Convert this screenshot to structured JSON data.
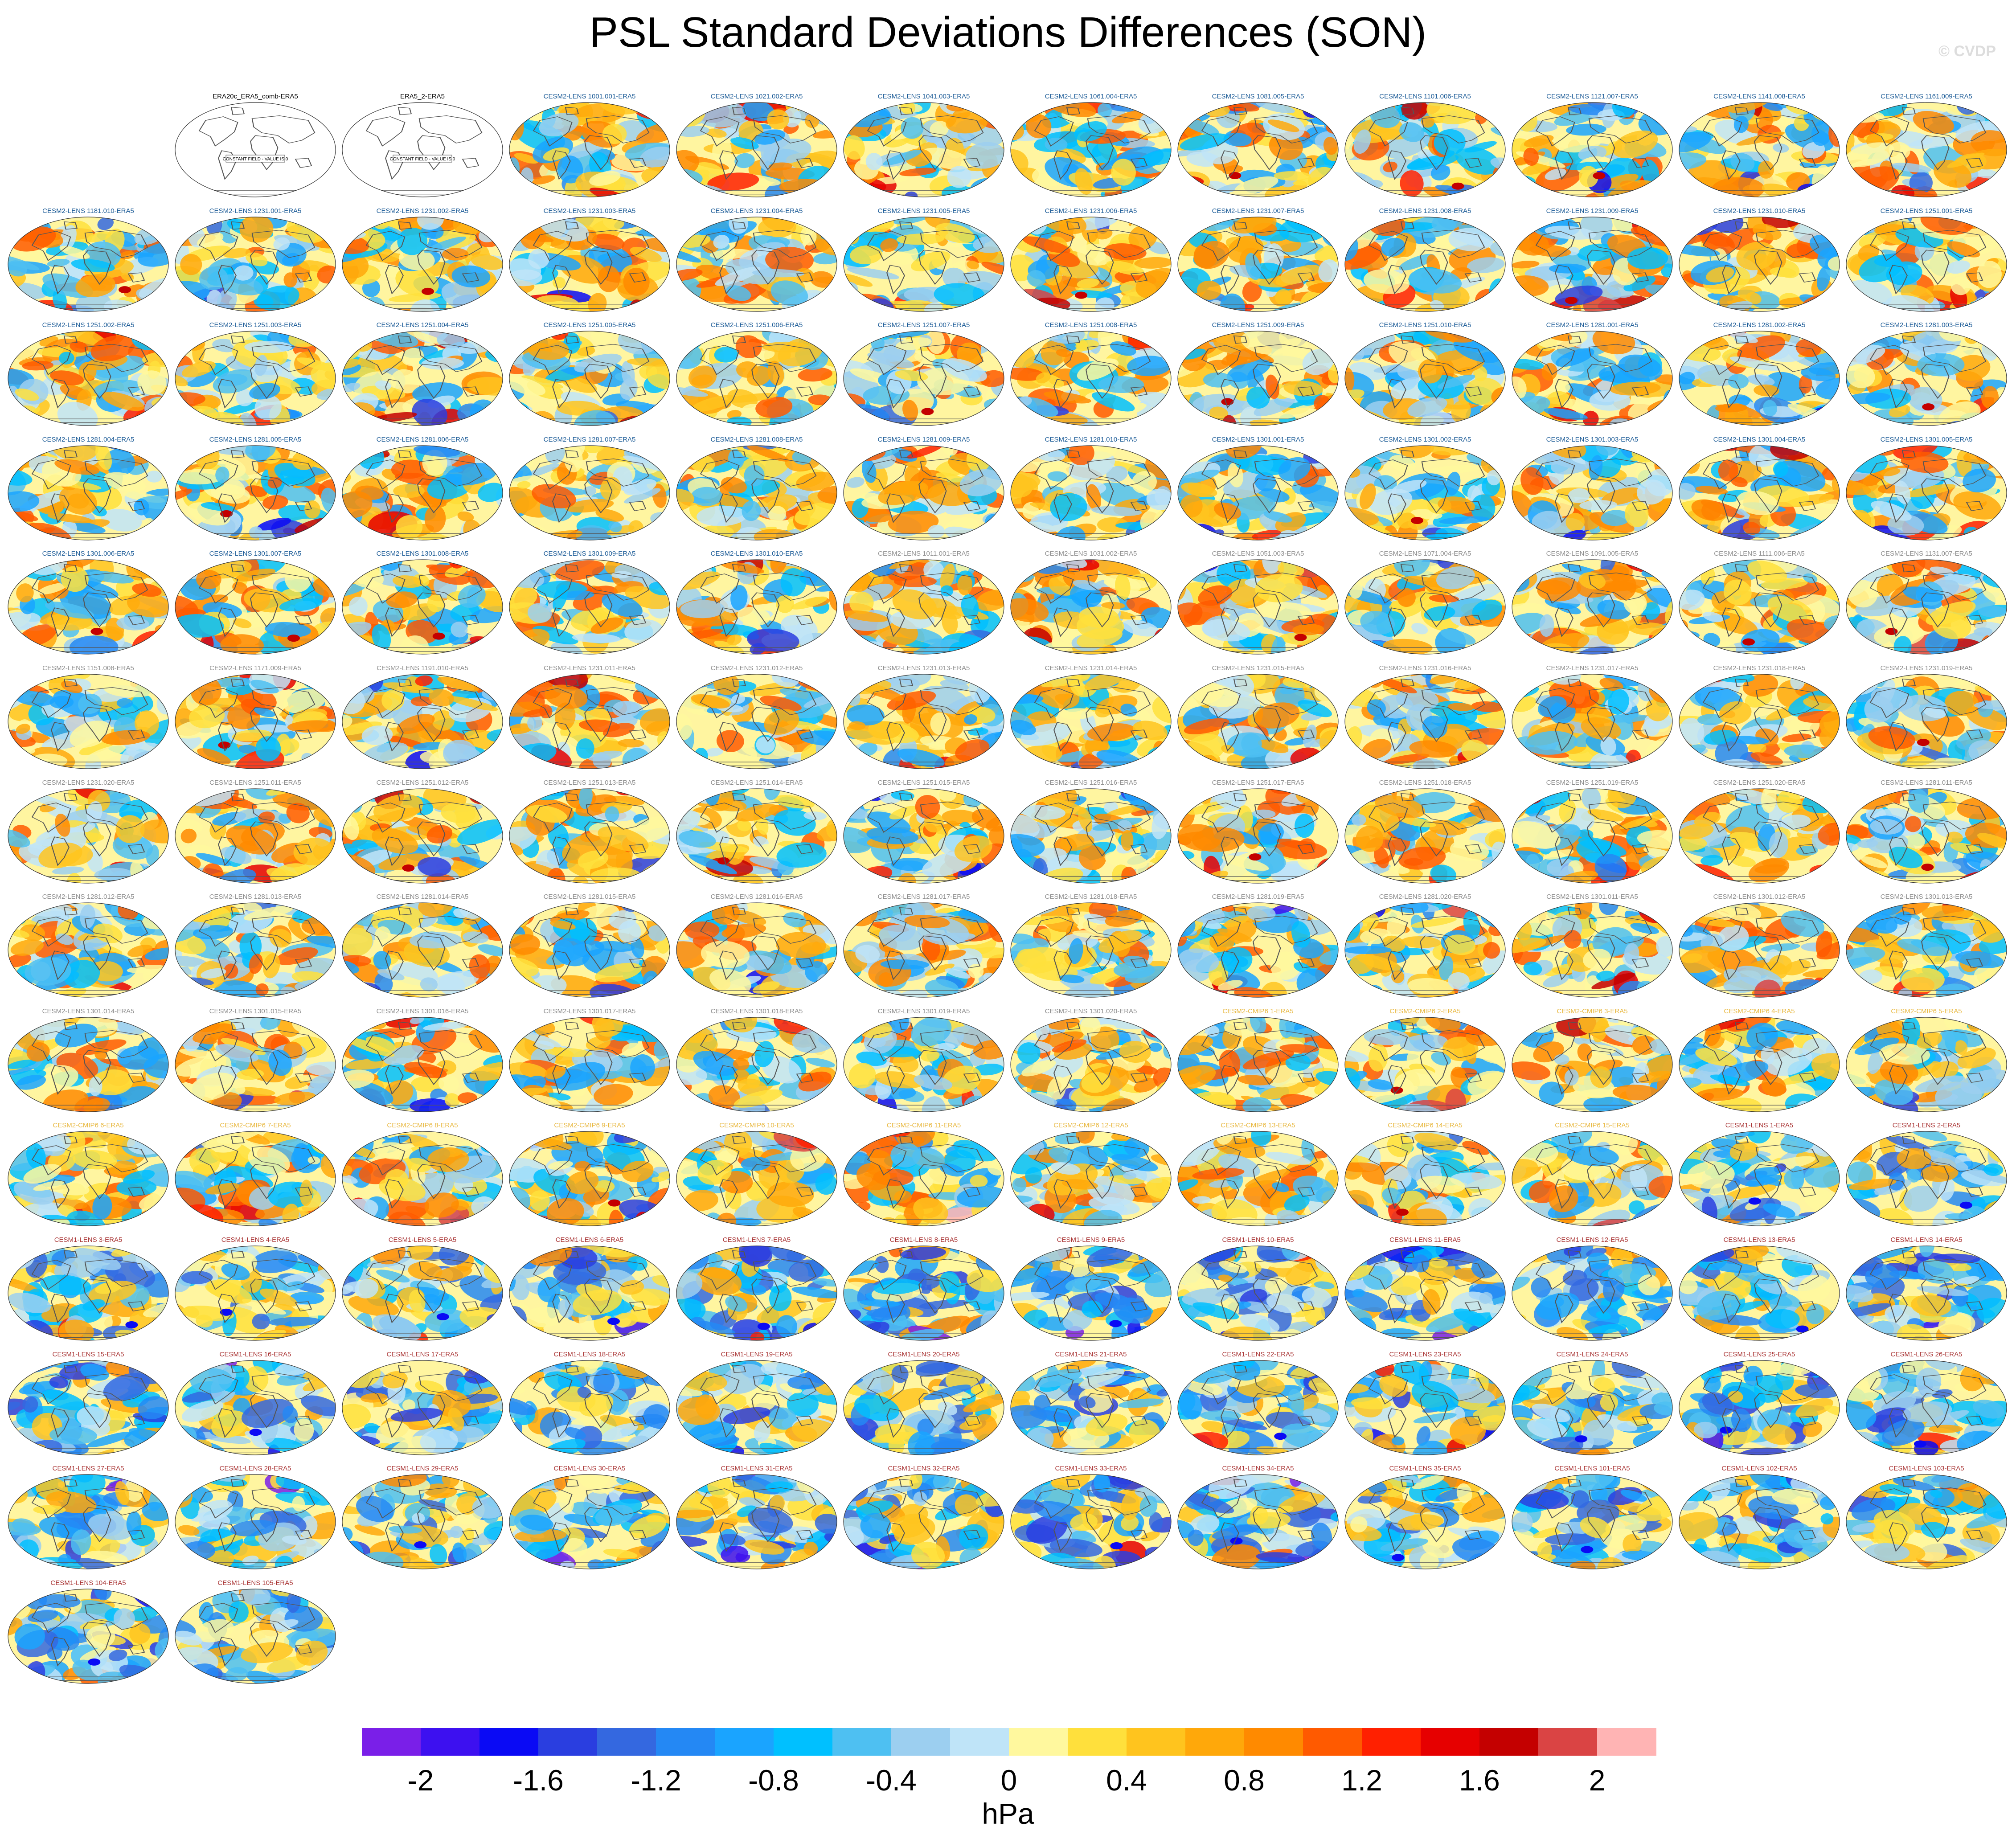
{
  "title": "PSL Standard Deviations Differences (SON)",
  "credit": "© CVDP",
  "colorbar": {
    "units": "hPa",
    "tick_labels": [
      "-2",
      "-1.6",
      "-1.2",
      "-0.8",
      "-0.4",
      "0",
      "0.4",
      "0.8",
      "1.2",
      "1.6",
      "2"
    ],
    "colors": [
      "#7a1fe8",
      "#3d10f0",
      "#0a0af5",
      "#2a3ee0",
      "#3468e0",
      "#2488f4",
      "#1aa4ff",
      "#00c0ff",
      "#4ec0f2",
      "#9ccff0",
      "#bfe4f8",
      "#fff89e",
      "#ffe03c",
      "#ffc41e",
      "#ffa80a",
      "#ff8a00",
      "#ff5a00",
      "#ff2000",
      "#e60000",
      "#c40000",
      "#da4444",
      "#ffb4b4"
    ]
  },
  "label_colors": {
    "era": "#000000",
    "lens2_a": "#1a5a96",
    "lens2_b": "#8c8c8c",
    "cmip6": "#e8b840",
    "lens1": "#a83232"
  },
  "panels": [
    {
      "label": "ERA20c_ERA5_comb-ERA5",
      "group": "era",
      "constant": true,
      "constant_text": "CONSTANT FIELD - VALUE IS 0"
    },
    {
      "label": "ERA5_2-ERA5",
      "group": "era",
      "constant": true,
      "constant_text": "CONSTANT FIELD - VALUE IS 0"
    },
    {
      "label": "CESM2-LENS 1001.001-ERA5",
      "group": "lens2_a"
    },
    {
      "label": "CESM2-LENS 1021.002-ERA5",
      "group": "lens2_a"
    },
    {
      "label": "CESM2-LENS 1041.003-ERA5",
      "group": "lens2_a"
    },
    {
      "label": "CESM2-LENS 1061.004-ERA5",
      "group": "lens2_a"
    },
    {
      "label": "CESM2-LENS 1081.005-ERA5",
      "group": "lens2_a"
    },
    {
      "label": "CESM2-LENS 1101.006-ERA5",
      "group": "lens2_a"
    },
    {
      "label": "CESM2-LENS 1121.007-ERA5",
      "group": "lens2_a"
    },
    {
      "label": "CESM2-LENS 1141.008-ERA5",
      "group": "lens2_a"
    },
    {
      "label": "CESM2-LENS 1161.009-ERA5",
      "group": "lens2_a"
    },
    {
      "label": "CESM2-LENS 1181.010-ERA5",
      "group": "lens2_a"
    },
    {
      "label": "CESM2-LENS 1231.001-ERA5",
      "group": "lens2_a"
    },
    {
      "label": "CESM2-LENS 1231.002-ERA5",
      "group": "lens2_a"
    },
    {
      "label": "CESM2-LENS 1231.003-ERA5",
      "group": "lens2_a"
    },
    {
      "label": "CESM2-LENS 1231.004-ERA5",
      "group": "lens2_a"
    },
    {
      "label": "CESM2-LENS 1231.005-ERA5",
      "group": "lens2_a"
    },
    {
      "label": "CESM2-LENS 1231.006-ERA5",
      "group": "lens2_a"
    },
    {
      "label": "CESM2-LENS 1231.007-ERA5",
      "group": "lens2_a"
    },
    {
      "label": "CESM2-LENS 1231.008-ERA5",
      "group": "lens2_a"
    },
    {
      "label": "CESM2-LENS 1231.009-ERA5",
      "group": "lens2_a"
    },
    {
      "label": "CESM2-LENS 1231.010-ERA5",
      "group": "lens2_a"
    },
    {
      "label": "CESM2-LENS 1251.001-ERA5",
      "group": "lens2_a"
    },
    {
      "label": "CESM2-LENS 1251.002-ERA5",
      "group": "lens2_a"
    },
    {
      "label": "CESM2-LENS 1251.003-ERA5",
      "group": "lens2_a"
    },
    {
      "label": "CESM2-LENS 1251.004-ERA5",
      "group": "lens2_a"
    },
    {
      "label": "CESM2-LENS 1251.005-ERA5",
      "group": "lens2_a"
    },
    {
      "label": "CESM2-LENS 1251.006-ERA5",
      "group": "lens2_a"
    },
    {
      "label": "CESM2-LENS 1251.007-ERA5",
      "group": "lens2_a"
    },
    {
      "label": "CESM2-LENS 1251.008-ERA5",
      "group": "lens2_a"
    },
    {
      "label": "CESM2-LENS 1251.009-ERA5",
      "group": "lens2_a"
    },
    {
      "label": "CESM2-LENS 1251.010-ERA5",
      "group": "lens2_a"
    },
    {
      "label": "CESM2-LENS 1281.001-ERA5",
      "group": "lens2_a"
    },
    {
      "label": "CESM2-LENS 1281.002-ERA5",
      "group": "lens2_a"
    },
    {
      "label": "CESM2-LENS 1281.003-ERA5",
      "group": "lens2_a"
    },
    {
      "label": "CESM2-LENS 1281.004-ERA5",
      "group": "lens2_a"
    },
    {
      "label": "CESM2-LENS 1281.005-ERA5",
      "group": "lens2_a"
    },
    {
      "label": "CESM2-LENS 1281.006-ERA5",
      "group": "lens2_a"
    },
    {
      "label": "CESM2-LENS 1281.007-ERA5",
      "group": "lens2_a"
    },
    {
      "label": "CESM2-LENS 1281.008-ERA5",
      "group": "lens2_a"
    },
    {
      "label": "CESM2-LENS 1281.009-ERA5",
      "group": "lens2_a"
    },
    {
      "label": "CESM2-LENS 1281.010-ERA5",
      "group": "lens2_a"
    },
    {
      "label": "CESM2-LENS 1301.001-ERA5",
      "group": "lens2_a"
    },
    {
      "label": "CESM2-LENS 1301.002-ERA5",
      "group": "lens2_a"
    },
    {
      "label": "CESM2-LENS 1301.003-ERA5",
      "group": "lens2_a"
    },
    {
      "label": "CESM2-LENS 1301.004-ERA5",
      "group": "lens2_a"
    },
    {
      "label": "CESM2-LENS 1301.005-ERA5",
      "group": "lens2_a"
    },
    {
      "label": "CESM2-LENS 1301.006-ERA5",
      "group": "lens2_a"
    },
    {
      "label": "CESM2-LENS 1301.007-ERA5",
      "group": "lens2_a"
    },
    {
      "label": "CESM2-LENS 1301.008-ERA5",
      "group": "lens2_a"
    },
    {
      "label": "CESM2-LENS 1301.009-ERA5",
      "group": "lens2_a"
    },
    {
      "label": "CESM2-LENS 1301.010-ERA5",
      "group": "lens2_a"
    },
    {
      "label": "CESM2-LENS 1011.001-ERA5",
      "group": "lens2_b"
    },
    {
      "label": "CESM2-LENS 1031.002-ERA5",
      "group": "lens2_b"
    },
    {
      "label": "CESM2-LENS 1051.003-ERA5",
      "group": "lens2_b"
    },
    {
      "label": "CESM2-LENS 1071.004-ERA5",
      "group": "lens2_b"
    },
    {
      "label": "CESM2-LENS 1091.005-ERA5",
      "group": "lens2_b"
    },
    {
      "label": "CESM2-LENS 1111.006-ERA5",
      "group": "lens2_b"
    },
    {
      "label": "CESM2-LENS 1131.007-ERA5",
      "group": "lens2_b"
    },
    {
      "label": "CESM2-LENS 1151.008-ERA5",
      "group": "lens2_b"
    },
    {
      "label": "CESM2-LENS 1171.009-ERA5",
      "group": "lens2_b"
    },
    {
      "label": "CESM2-LENS 1191.010-ERA5",
      "group": "lens2_b"
    },
    {
      "label": "CESM2-LENS 1231.011-ERA5",
      "group": "lens2_b"
    },
    {
      "label": "CESM2-LENS 1231.012-ERA5",
      "group": "lens2_b"
    },
    {
      "label": "CESM2-LENS 1231.013-ERA5",
      "group": "lens2_b"
    },
    {
      "label": "CESM2-LENS 1231.014-ERA5",
      "group": "lens2_b"
    },
    {
      "label": "CESM2-LENS 1231.015-ERA5",
      "group": "lens2_b"
    },
    {
      "label": "CESM2-LENS 1231.016-ERA5",
      "group": "lens2_b"
    },
    {
      "label": "CESM2-LENS 1231.017-ERA5",
      "group": "lens2_b"
    },
    {
      "label": "CESM2-LENS 1231.018-ERA5",
      "group": "lens2_b"
    },
    {
      "label": "CESM2-LENS 1231.019-ERA5",
      "group": "lens2_b"
    },
    {
      "label": "CESM2-LENS 1231.020-ERA5",
      "group": "lens2_b"
    },
    {
      "label": "CESM2-LENS 1251.011-ERA5",
      "group": "lens2_b"
    },
    {
      "label": "CESM2-LENS 1251.012-ERA5",
      "group": "lens2_b"
    },
    {
      "label": "CESM2-LENS 1251.013-ERA5",
      "group": "lens2_b"
    },
    {
      "label": "CESM2-LENS 1251.014-ERA5",
      "group": "lens2_b"
    },
    {
      "label": "CESM2-LENS 1251.015-ERA5",
      "group": "lens2_b"
    },
    {
      "label": "CESM2-LENS 1251.016-ERA5",
      "group": "lens2_b"
    },
    {
      "label": "CESM2-LENS 1251.017-ERA5",
      "group": "lens2_b"
    },
    {
      "label": "CESM2-LENS 1251.018-ERA5",
      "group": "lens2_b"
    },
    {
      "label": "CESM2-LENS 1251.019-ERA5",
      "group": "lens2_b"
    },
    {
      "label": "CESM2-LENS 1251.020-ERA5",
      "group": "lens2_b"
    },
    {
      "label": "CESM2-LENS 1281.011-ERA5",
      "group": "lens2_b"
    },
    {
      "label": "CESM2-LENS 1281.012-ERA5",
      "group": "lens2_b"
    },
    {
      "label": "CESM2-LENS 1281.013-ERA5",
      "group": "lens2_b"
    },
    {
      "label": "CESM2-LENS 1281.014-ERA5",
      "group": "lens2_b"
    },
    {
      "label": "CESM2-LENS 1281.015-ERA5",
      "group": "lens2_b"
    },
    {
      "label": "CESM2-LENS 1281.016-ERA5",
      "group": "lens2_b"
    },
    {
      "label": "CESM2-LENS 1281.017-ERA5",
      "group": "lens2_b"
    },
    {
      "label": "CESM2-LENS 1281.018-ERA5",
      "group": "lens2_b"
    },
    {
      "label": "CESM2-LENS 1281.019-ERA5",
      "group": "lens2_b"
    },
    {
      "label": "CESM2-LENS 1281.020-ERA5",
      "group": "lens2_b"
    },
    {
      "label": "CESM2-LENS 1301.011-ERA5",
      "group": "lens2_b"
    },
    {
      "label": "CESM2-LENS 1301.012-ERA5",
      "group": "lens2_b"
    },
    {
      "label": "CESM2-LENS 1301.013-ERA5",
      "group": "lens2_b"
    },
    {
      "label": "CESM2-LENS 1301.014-ERA5",
      "group": "lens2_b"
    },
    {
      "label": "CESM2-LENS 1301.015-ERA5",
      "group": "lens2_b"
    },
    {
      "label": "CESM2-LENS 1301.016-ERA5",
      "group": "lens2_b"
    },
    {
      "label": "CESM2-LENS 1301.017-ERA5",
      "group": "lens2_b"
    },
    {
      "label": "CESM2-LENS 1301.018-ERA5",
      "group": "lens2_b"
    },
    {
      "label": "CESM2-LENS 1301.019-ERA5",
      "group": "lens2_b"
    },
    {
      "label": "CESM2-LENS 1301.020-ERA5",
      "group": "lens2_b"
    },
    {
      "label": "CESM2-CMIP6 1-ERA5",
      "group": "cmip6"
    },
    {
      "label": "CESM2-CMIP6 2-ERA5",
      "group": "cmip6"
    },
    {
      "label": "CESM2-CMIP6 3-ERA5",
      "group": "cmip6"
    },
    {
      "label": "CESM2-CMIP6 4-ERA5",
      "group": "cmip6"
    },
    {
      "label": "CESM2-CMIP6 5-ERA5",
      "group": "cmip6"
    },
    {
      "label": "CESM2-CMIP6 6-ERA5",
      "group": "cmip6"
    },
    {
      "label": "CESM2-CMIP6 7-ERA5",
      "group": "cmip6"
    },
    {
      "label": "CESM2-CMIP6 8-ERA5",
      "group": "cmip6"
    },
    {
      "label": "CESM2-CMIP6 9-ERA5",
      "group": "cmip6"
    },
    {
      "label": "CESM2-CMIP6 10-ERA5",
      "group": "cmip6"
    },
    {
      "label": "CESM2-CMIP6 11-ERA5",
      "group": "cmip6"
    },
    {
      "label": "CESM2-CMIP6 12-ERA5",
      "group": "cmip6"
    },
    {
      "label": "CESM2-CMIP6 13-ERA5",
      "group": "cmip6"
    },
    {
      "label": "CESM2-CMIP6 14-ERA5",
      "group": "cmip6"
    },
    {
      "label": "CESM2-CMIP6 15-ERA5",
      "group": "cmip6"
    },
    {
      "label": "CESM1-LENS 1-ERA5",
      "group": "lens1"
    },
    {
      "label": "CESM1-LENS 2-ERA5",
      "group": "lens1"
    },
    {
      "label": "CESM1-LENS 3-ERA5",
      "group": "lens1"
    },
    {
      "label": "CESM1-LENS 4-ERA5",
      "group": "lens1"
    },
    {
      "label": "CESM1-LENS 5-ERA5",
      "group": "lens1"
    },
    {
      "label": "CESM1-LENS 6-ERA5",
      "group": "lens1"
    },
    {
      "label": "CESM1-LENS 7-ERA5",
      "group": "lens1"
    },
    {
      "label": "CESM1-LENS 8-ERA5",
      "group": "lens1"
    },
    {
      "label": "CESM1-LENS 9-ERA5",
      "group": "lens1"
    },
    {
      "label": "CESM1-LENS 10-ERA5",
      "group": "lens1"
    },
    {
      "label": "CESM1-LENS 11-ERA5",
      "group": "lens1"
    },
    {
      "label": "CESM1-LENS 12-ERA5",
      "group": "lens1"
    },
    {
      "label": "CESM1-LENS 13-ERA5",
      "group": "lens1"
    },
    {
      "label": "CESM1-LENS 14-ERA5",
      "group": "lens1"
    },
    {
      "label": "CESM1-LENS 15-ERA5",
      "group": "lens1"
    },
    {
      "label": "CESM1-LENS 16-ERA5",
      "group": "lens1"
    },
    {
      "label": "CESM1-LENS 17-ERA5",
      "group": "lens1"
    },
    {
      "label": "CESM1-LENS 18-ERA5",
      "group": "lens1"
    },
    {
      "label": "CESM1-LENS 19-ERA5",
      "group": "lens1"
    },
    {
      "label": "CESM1-LENS 20-ERA5",
      "group": "lens1"
    },
    {
      "label": "CESM1-LENS 21-ERA5",
      "group": "lens1"
    },
    {
      "label": "CESM1-LENS 22-ERA5",
      "group": "lens1"
    },
    {
      "label": "CESM1-LENS 23-ERA5",
      "group": "lens1"
    },
    {
      "label": "CESM1-LENS 24-ERA5",
      "group": "lens1"
    },
    {
      "label": "CESM1-LENS 25-ERA5",
      "group": "lens1"
    },
    {
      "label": "CESM1-LENS 26-ERA5",
      "group": "lens1"
    },
    {
      "label": "CESM1-LENS 27-ERA5",
      "group": "lens1"
    },
    {
      "label": "CESM1-LENS 28-ERA5",
      "group": "lens1"
    },
    {
      "label": "CESM1-LENS 29-ERA5",
      "group": "lens1"
    },
    {
      "label": "CESM1-LENS 30-ERA5",
      "group": "lens1"
    },
    {
      "label": "CESM1-LENS 31-ERA5",
      "group": "lens1"
    },
    {
      "label": "CESM1-LENS 32-ERA5",
      "group": "lens1"
    },
    {
      "label": "CESM1-LENS 33-ERA5",
      "group": "lens1"
    },
    {
      "label": "CESM1-LENS 34-ERA5",
      "group": "lens1"
    },
    {
      "label": "CESM1-LENS 35-ERA5",
      "group": "lens1"
    },
    {
      "label": "CESM1-LENS 101-ERA5",
      "group": "lens1"
    },
    {
      "label": "CESM1-LENS 102-ERA5",
      "group": "lens1"
    },
    {
      "label": "CESM1-LENS 103-ERA5",
      "group": "lens1"
    },
    {
      "label": "CESM1-LENS 104-ERA5",
      "group": "lens1"
    },
    {
      "label": "CESM1-LENS 105-ERA5",
      "group": "lens1"
    }
  ]
}
